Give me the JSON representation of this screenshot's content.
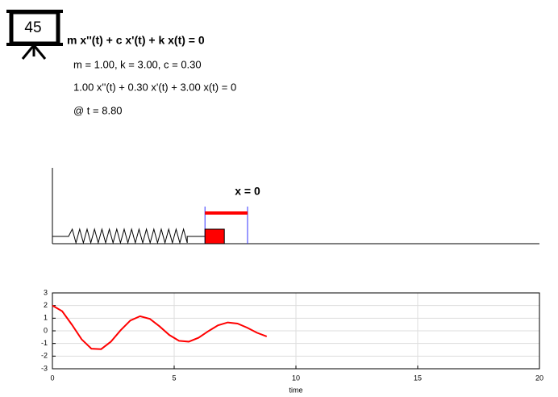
{
  "icon_label": "45",
  "equation": "m x''(t) + c x'(t) + k x(t) = 0",
  "params": "m = 1.00, k = 3.00, c = 0.30",
  "expanded": "1.00 x''(t) + 0.30 x'(t) + 3.00 x(t) = 0",
  "time_label": "@ t = 8.80",
  "sim": {
    "equilibrium_label": "x = 0"
  },
  "chart_data": {
    "type": "line",
    "x": [
      0,
      0.4,
      0.8,
      1.2,
      1.6,
      2.0,
      2.4,
      2.8,
      3.2,
      3.6,
      4.0,
      4.4,
      4.8,
      5.2,
      5.6,
      6.0,
      6.4,
      6.8,
      7.2,
      7.6,
      8.0,
      8.4,
      8.8
    ],
    "values": [
      2,
      1.557,
      0.487,
      -0.673,
      -1.412,
      -1.45,
      -0.86,
      0.042,
      0.819,
      1.157,
      0.949,
      0.354,
      -0.328,
      -0.791,
      -0.857,
      -0.546,
      -0.03,
      0.436,
      0.664,
      0.575,
      0.247,
      -0.152,
      -0.44
    ],
    "color": "#ff0000",
    "xlim": [
      0,
      20
    ],
    "ylim": [
      -3,
      3
    ],
    "xticks": [
      0,
      5,
      10,
      15,
      20
    ],
    "yticks": [
      -3,
      -2,
      -1,
      0,
      1,
      2,
      3
    ],
    "x_label": "time",
    "grid": true
  }
}
